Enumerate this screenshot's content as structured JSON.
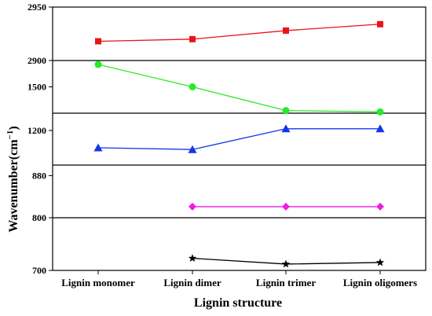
{
  "chart_data": {
    "type": "line",
    "xlabel": "Lignin structure",
    "ylabel": "Wavenumber(cm",
    "ylabel_sup": "−1",
    "ylabel_close": ")",
    "categories": [
      "Lignin monomer",
      "Lignin dimer",
      "Lignin trimer",
      "Lignin oligomers"
    ],
    "grid": false,
    "panels": [
      {
        "ylim": [
          2900,
          2950
        ],
        "yticks": [
          "2950",
          "2900"
        ],
        "tick_values": [
          2950,
          2900
        ],
        "series": [
          {
            "color": "#e8141a",
            "marker": "square",
            "values": [
              2918,
              2920,
              2928,
              2934
            ]
          }
        ]
      },
      {
        "ylim": [
          1400,
          1600
        ],
        "yticks": [
          "1500"
        ],
        "tick_values": [
          1500
        ],
        "series": [
          {
            "color": "#28e82a",
            "marker": "circle",
            "values": [
              1585,
              1500,
              1410,
              1405
            ]
          }
        ]
      },
      {
        "ylim": [
          1000,
          1300
        ],
        "yticks": [
          "1200"
        ],
        "tick_values": [
          1200
        ],
        "series": [
          {
            "color": "#1237e8",
            "marker": "triangle",
            "values": [
              1100,
              1090,
              1210,
              1210
            ]
          }
        ]
      },
      {
        "ylim": [
          800,
          900
        ],
        "yticks": [
          "880",
          "800"
        ],
        "tick_values": [
          880,
          800
        ],
        "series": [
          {
            "color": "#ee1ce6",
            "marker": "diamond",
            "values": [
              null,
              821,
              821,
              821
            ]
          }
        ]
      },
      {
        "ylim": [
          700,
          800
        ],
        "yticks": [
          "700"
        ],
        "tick_values": [
          700
        ],
        "series": [
          {
            "color": "#000000",
            "marker": "star",
            "values": [
              null,
              723,
              712,
              715
            ]
          }
        ]
      }
    ]
  }
}
